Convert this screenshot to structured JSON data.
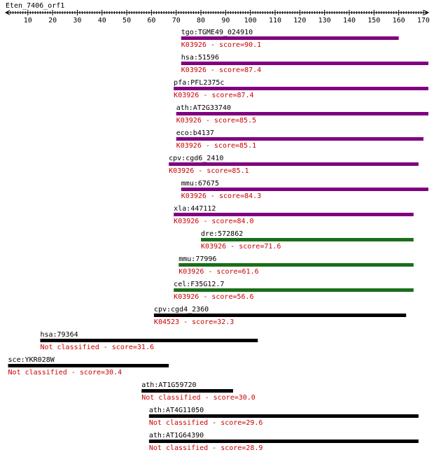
{
  "chart_data": {
    "type": "bar",
    "title": "Eten_7406_orf1",
    "xlim": [
      1,
      172
    ],
    "xticks": [
      10,
      20,
      30,
      40,
      50,
      60,
      70,
      80,
      90,
      100,
      110,
      120,
      130,
      140,
      150,
      160,
      170
    ],
    "colors": {
      "purple": "#800080",
      "green": "#1a6e1a",
      "black": "#000000",
      "label": "#000000",
      "sub": "#cc0000"
    },
    "hits": [
      {
        "label": "tgo:TGME49_024910",
        "sub": "K03926 - score=90.1",
        "start": 72,
        "end": 160,
        "color": "purple"
      },
      {
        "label": "hsa:51596",
        "sub": "K03926 - score=87.4",
        "start": 72,
        "end": 172,
        "color": "purple"
      },
      {
        "label": "pfa:PFL2375c",
        "sub": "K03926 - score=87.4",
        "start": 69,
        "end": 172,
        "color": "purple"
      },
      {
        "label": "ath:AT2G33740",
        "sub": "K03926 - score=85.5",
        "start": 70,
        "end": 172,
        "color": "purple"
      },
      {
        "label": "eco:b4137",
        "sub": "K03926 - score=85.1",
        "start": 70,
        "end": 170,
        "color": "purple"
      },
      {
        "label": "cpv:cgd6_2410",
        "sub": "K03926 - score=85.1",
        "start": 67,
        "end": 168,
        "color": "purple"
      },
      {
        "label": "mmu:67675",
        "sub": "K03926 - score=84.3",
        "start": 72,
        "end": 172,
        "color": "purple"
      },
      {
        "label": "xla:447112",
        "sub": "K03926 - score=84.0",
        "start": 69,
        "end": 166,
        "color": "purple"
      },
      {
        "label": "dre:572862",
        "sub": "K03926 - score=71.6",
        "start": 80,
        "end": 166,
        "color": "green"
      },
      {
        "label": "mmu:77996",
        "sub": "K03926 - score=61.6",
        "start": 71,
        "end": 166,
        "color": "green"
      },
      {
        "label": "cel:F35G12.7",
        "sub": "K03926 - score=56.6",
        "start": 69,
        "end": 166,
        "color": "green"
      },
      {
        "label": "cpv:cgd4_2360",
        "sub": "K04523 - score=32.3",
        "start": 61,
        "end": 163,
        "color": "black"
      },
      {
        "label": "hsa:79364",
        "sub": "Not classified - score=31.6",
        "start": 15,
        "end": 103,
        "color": "black"
      },
      {
        "label": "sce:YKR028W",
        "sub": "Not classified - score=30.4",
        "start": 2,
        "end": 67,
        "color": "black"
      },
      {
        "label": "ath:AT1G59720",
        "sub": "Not classified - score=30.0",
        "start": 56,
        "end": 93,
        "color": "black"
      },
      {
        "label": "ath:AT4G11050",
        "sub": "Not classified - score=29.6",
        "start": 59,
        "end": 168,
        "color": "black"
      },
      {
        "label": "ath:AT1G64390",
        "sub": "Not classified - score=28.9",
        "start": 59,
        "end": 168,
        "color": "black"
      }
    ]
  }
}
